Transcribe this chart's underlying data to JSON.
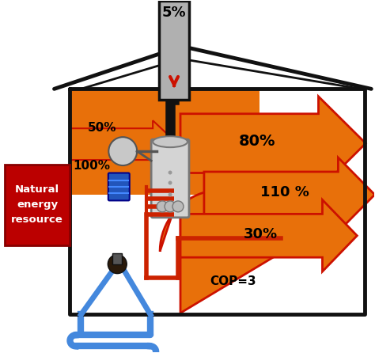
{
  "bg_color": "#ffffff",
  "house_outline_color": "#111111",
  "house_wall_lw": 3.5,
  "chimney_color": "#b0b0b0",
  "orange": "#E8700A",
  "dark_red": "#BB0000",
  "arrow_edge_color": "#CC1100",
  "label_5": "5%",
  "label_100": "100%",
  "label_50": "50%",
  "label_80": "80%",
  "label_110": "110 %",
  "label_30": "30%",
  "label_cop": "COP=3",
  "label_resource": "Natural\nenergy\nresource",
  "blue_pipe": "#4488dd",
  "red_pipe": "#cc2200",
  "black_pipe": "#111111"
}
